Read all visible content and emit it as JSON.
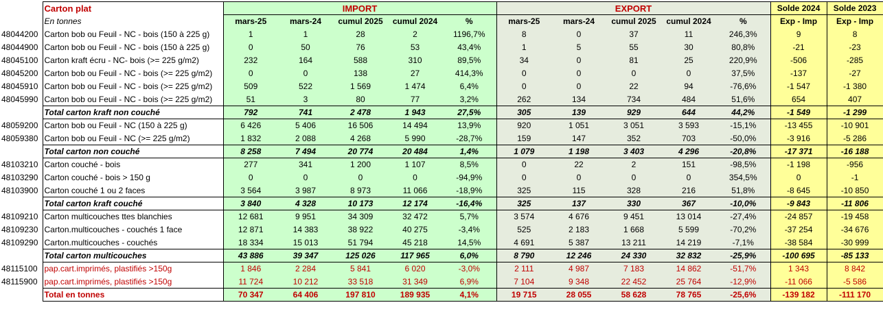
{
  "title": "Carton plat",
  "unit": "En tonnes",
  "groups": {
    "import": "IMPORT",
    "export": "EXPORT",
    "solde1": "Solde 2024",
    "solde2": "Solde 2023"
  },
  "col_headers": [
    "mars-25",
    "mars-24",
    "cumul 2025",
    "cumul 2024",
    "%",
    "mars-25",
    "mars-24",
    "cumul 2025",
    "cumul 2024",
    "%",
    "Exp - Imp",
    "Exp - Imp"
  ],
  "rows": [
    {
      "type": "data",
      "code": "48044200",
      "label": "Carton bob ou Feuil - NC - bois (150 à 225 g)",
      "v": [
        "1",
        "1",
        "28",
        "2",
        "1196,7%",
        "8",
        "0",
        "37",
        "11",
        "246,3%",
        "9",
        "8"
      ]
    },
    {
      "type": "data",
      "code": "48044900",
      "label": "Carton bob ou Feuil - NC - bois (150 à 225 g)",
      "v": [
        "0",
        "50",
        "76",
        "53",
        "43,4%",
        "1",
        "5",
        "55",
        "30",
        "80,8%",
        "-21",
        "-23"
      ]
    },
    {
      "type": "data",
      "code": "48045100",
      "label": "Carton kraft écru - NC- bois  (>= 225 g/m2)",
      "v": [
        "232",
        "164",
        "588",
        "310",
        "89,5%",
        "34",
        "0",
        "81",
        "25",
        "220,9%",
        "-506",
        "-285"
      ]
    },
    {
      "type": "data",
      "code": "48045200",
      "label": "Carton bob ou Feuil - NC - bois (>= 225 g/m2)",
      "v": [
        "0",
        "0",
        "138",
        "27",
        "414,3%",
        "0",
        "0",
        "0",
        "0",
        "37,5%",
        "-137",
        "-27"
      ]
    },
    {
      "type": "data",
      "code": "48045910",
      "label": "Carton bob ou Feuil - NC - bois (>= 225 g/m2)",
      "v": [
        "509",
        "522",
        "1 569",
        "1 474",
        "6,4%",
        "0",
        "0",
        "22",
        "94",
        "-76,6%",
        "-1 547",
        "-1 380"
      ]
    },
    {
      "type": "data",
      "code": "48045990",
      "label": "Carton bob ou Feuil - NC - bois (>= 225 g/m2)",
      "v": [
        "51",
        "3",
        "80",
        "77",
        "3,2%",
        "262",
        "134",
        "734",
        "484",
        "51,6%",
        "654",
        "407"
      ]
    },
    {
      "type": "total",
      "code": "",
      "label": "Total carton kraft non couché",
      "v": [
        "792",
        "741",
        "2 478",
        "1 943",
        "27,5%",
        "305",
        "139",
        "929",
        "644",
        "44,2%",
        "-1 549",
        "-1 299"
      ]
    },
    {
      "type": "data",
      "code": "48059200",
      "label": "Carton bob ou Feuil - NC (150 à 225 g)",
      "v": [
        "6 426",
        "5 406",
        "16 506",
        "14 494",
        "13,9%",
        "920",
        "1 051",
        "3 051",
        "3 593",
        "-15,1%",
        "-13 455",
        "-10 901"
      ]
    },
    {
      "type": "data",
      "code": "48059380",
      "label": "Carton bob ou Feuil - NC (>= 225 g/m2)",
      "v": [
        "1 832",
        "2 088",
        "4 268",
        "5 990",
        "-28,7%",
        "159",
        "147",
        "352",
        "703",
        "-50,0%",
        "-3 916",
        "-5 286"
      ]
    },
    {
      "type": "total",
      "code": "",
      "label": "Total carton non couché",
      "v": [
        "8 258",
        "7 494",
        "20 774",
        "20 484",
        "1,4%",
        "1 079",
        "1 198",
        "3 403",
        "4 296",
        "-20,8%",
        "-17 371",
        "-16 188"
      ]
    },
    {
      "type": "data",
      "code": "48103210",
      "label": "Carton couché - bois",
      "v": [
        "277",
        "341",
        "1 200",
        "1 107",
        "8,5%",
        "0",
        "22",
        "2",
        "151",
        "-98,5%",
        "-1 198",
        "-956"
      ]
    },
    {
      "type": "data",
      "code": "48103290",
      "label": "Carton couché - bois > 150 g",
      "v": [
        "0",
        "0",
        "0",
        "0",
        "-94,9%",
        "0",
        "0",
        "0",
        "0",
        "354,5%",
        "0",
        "-1"
      ]
    },
    {
      "type": "data",
      "code": "48103900",
      "label": "Carton couché  1 ou 2 faces",
      "v": [
        "3 564",
        "3 987",
        "8 973",
        "11 066",
        "-18,9%",
        "325",
        "115",
        "328",
        "216",
        "51,8%",
        "-8 645",
        "-10 850"
      ]
    },
    {
      "type": "total",
      "code": "",
      "label": "Total carton kraft couché",
      "v": [
        "3 840",
        "4 328",
        "10 173",
        "12 174",
        "-16,4%",
        "325",
        "137",
        "330",
        "367",
        "-10,0%",
        "-9 843",
        "-11 806"
      ]
    },
    {
      "type": "data",
      "code": "48109210",
      "label": "Carton multicouches ttes blanchies",
      "v": [
        "12 681",
        "9 951",
        "34 309",
        "32 472",
        "5,7%",
        "3 574",
        "4 676",
        "9 451",
        "13 014",
        "-27,4%",
        "-24 857",
        "-19 458"
      ]
    },
    {
      "type": "data",
      "code": "48109230",
      "label": "Carton.multicouches - couchés 1 face",
      "v": [
        "12 871",
        "14 383",
        "38 922",
        "40 275",
        "-3,4%",
        "525",
        "2 183",
        "1 668",
        "5 599",
        "-70,2%",
        "-37 254",
        "-34 676"
      ]
    },
    {
      "type": "data",
      "code": "48109290",
      "label": "Carton.multicouches - couchés",
      "v": [
        "18 334",
        "15 013",
        "51 794",
        "45 218",
        "14,5%",
        "4 691",
        "5 387",
        "13 211",
        "14 219",
        "-7,1%",
        "-38 584",
        "-30 999"
      ]
    },
    {
      "type": "total",
      "code": "",
      "label": "Total carton multicouches",
      "v": [
        "43 886",
        "39 347",
        "125 026",
        "117 965",
        "6,0%",
        "8 790",
        "12 246",
        "24 330",
        "32 832",
        "-25,9%",
        "-100 695",
        "-85 133"
      ]
    },
    {
      "type": "red",
      "code": "48115100",
      "label": "pap.cart.imprimés, plastifiés >150g",
      "v": [
        "1 846",
        "2 284",
        "5 841",
        "6 020",
        "-3,0%",
        "2 111",
        "4 987",
        "7 183",
        "14 862",
        "-51,7%",
        "1 343",
        "8 842"
      ]
    },
    {
      "type": "red",
      "code": "48115900",
      "label": "pap.cart.imprimés, plastifiés >150g",
      "v": [
        "11 724",
        "10 212",
        "33 518",
        "31 349",
        "6,9%",
        "7 104",
        "9 348",
        "22 452",
        "25 764",
        "-12,9%",
        "-11 066",
        "-5 586"
      ]
    },
    {
      "type": "grand",
      "code": "",
      "label": "Total en tonnes",
      "v": [
        "70 347",
        "64 406",
        "197 810",
        "189 935",
        "4,1%",
        "19 715",
        "28 055",
        "58 628",
        "78 765",
        "-25,6%",
        "-139 182",
        "-111 170"
      ]
    }
  ]
}
